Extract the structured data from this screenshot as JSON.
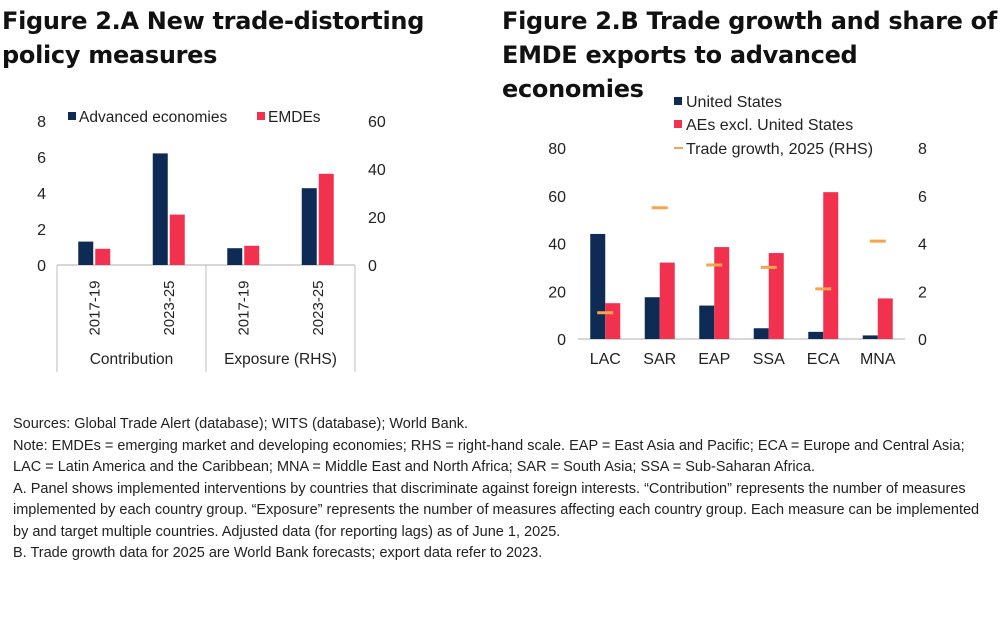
{
  "titles": {
    "a": "Figure 2.A New trade-distorting policy measures",
    "b": "Figure 2.B Trade growth and share of EMDE exports to advanced economies"
  },
  "colors": {
    "navy": "#0d2b55",
    "red": "#f2314f",
    "orange": "#f5a54e",
    "axis": "#bfbfbf"
  },
  "chart_data": [
    {
      "id": "figure-2a",
      "type": "bar",
      "title": "Figure 2.A New trade-distorting policy measures",
      "groups": [
        {
          "label": "Contribution",
          "categories": [
            "2017-19",
            "2023-25"
          ],
          "axis": "left"
        },
        {
          "label": "Exposure (RHS)",
          "categories": [
            "2017-19",
            "2023-25"
          ],
          "axis": "right"
        }
      ],
      "categories": [
        "2017-19",
        "2023-25",
        "2017-19",
        "2023-25"
      ],
      "series": [
        {
          "name": "Advanced economies",
          "color": "#0d2b55",
          "values": [
            1.3,
            6.2,
            7,
            32
          ]
        },
        {
          "name": "EMDEs",
          "color": "#f2314f",
          "values": [
            0.9,
            2.8,
            8,
            38
          ]
        }
      ],
      "ylim_left": [
        0,
        8
      ],
      "yticks_left": [
        0,
        2,
        4,
        6,
        8
      ],
      "ylim_right": [
        0,
        60
      ],
      "yticks_right": [
        0,
        20,
        40,
        60
      ],
      "legend": "top",
      "grid": false
    },
    {
      "id": "figure-2b",
      "type": "bar",
      "title": "Figure 2.B Trade growth and share of EMDE exports to advanced economies",
      "categories": [
        "LAC",
        "SAR",
        "EAP",
        "SSA",
        "ECA",
        "MNA"
      ],
      "series": [
        {
          "name": "United States",
          "type": "bar",
          "axis": "left",
          "color": "#0d2b55",
          "values": [
            44,
            17.5,
            14,
            4.5,
            3,
            1.5
          ]
        },
        {
          "name": "AEs excl. United States",
          "type": "bar",
          "axis": "left",
          "color": "#f2314f",
          "values": [
            15,
            32,
            38.5,
            36,
            61.5,
            17
          ]
        },
        {
          "name": "Trade growth, 2025 (RHS)",
          "type": "marker",
          "axis": "right",
          "color": "#f5a54e",
          "values": [
            1.1,
            5.5,
            3.1,
            3.0,
            2.1,
            4.1
          ]
        }
      ],
      "ylim_left": [
        0,
        80
      ],
      "yticks_left": [
        0,
        20,
        40,
        60,
        80
      ],
      "ylim_right": [
        0,
        8
      ],
      "yticks_right": [
        0,
        2,
        4,
        6,
        8
      ],
      "legend": "top",
      "grid": false
    }
  ],
  "notes": {
    "sources": "Sources: Global Trade Alert (database); WITS (database); World Bank.",
    "note": "Note: EMDEs = emerging market and developing economies; RHS = right-hand scale. EAP = East Asia and Pacific; ECA = Europe and Central Asia; LAC = Latin America and the Caribbean; MNA = Middle East and North Africa; SAR = South Asia; SSA = Sub-Saharan Africa.",
    "a": "A. Panel shows implemented interventions by countries that discriminate against foreign interests. “Contribution” represents the number of measures implemented by each country group. “Exposure” represents the number of measures affecting each country group. Each measure can be implemented by and target multiple countries. Adjusted data (for reporting lags) as of June 1, 2025.",
    "b": "B. Trade growth data for 2025 are World Bank forecasts; export data refer to 2023."
  }
}
